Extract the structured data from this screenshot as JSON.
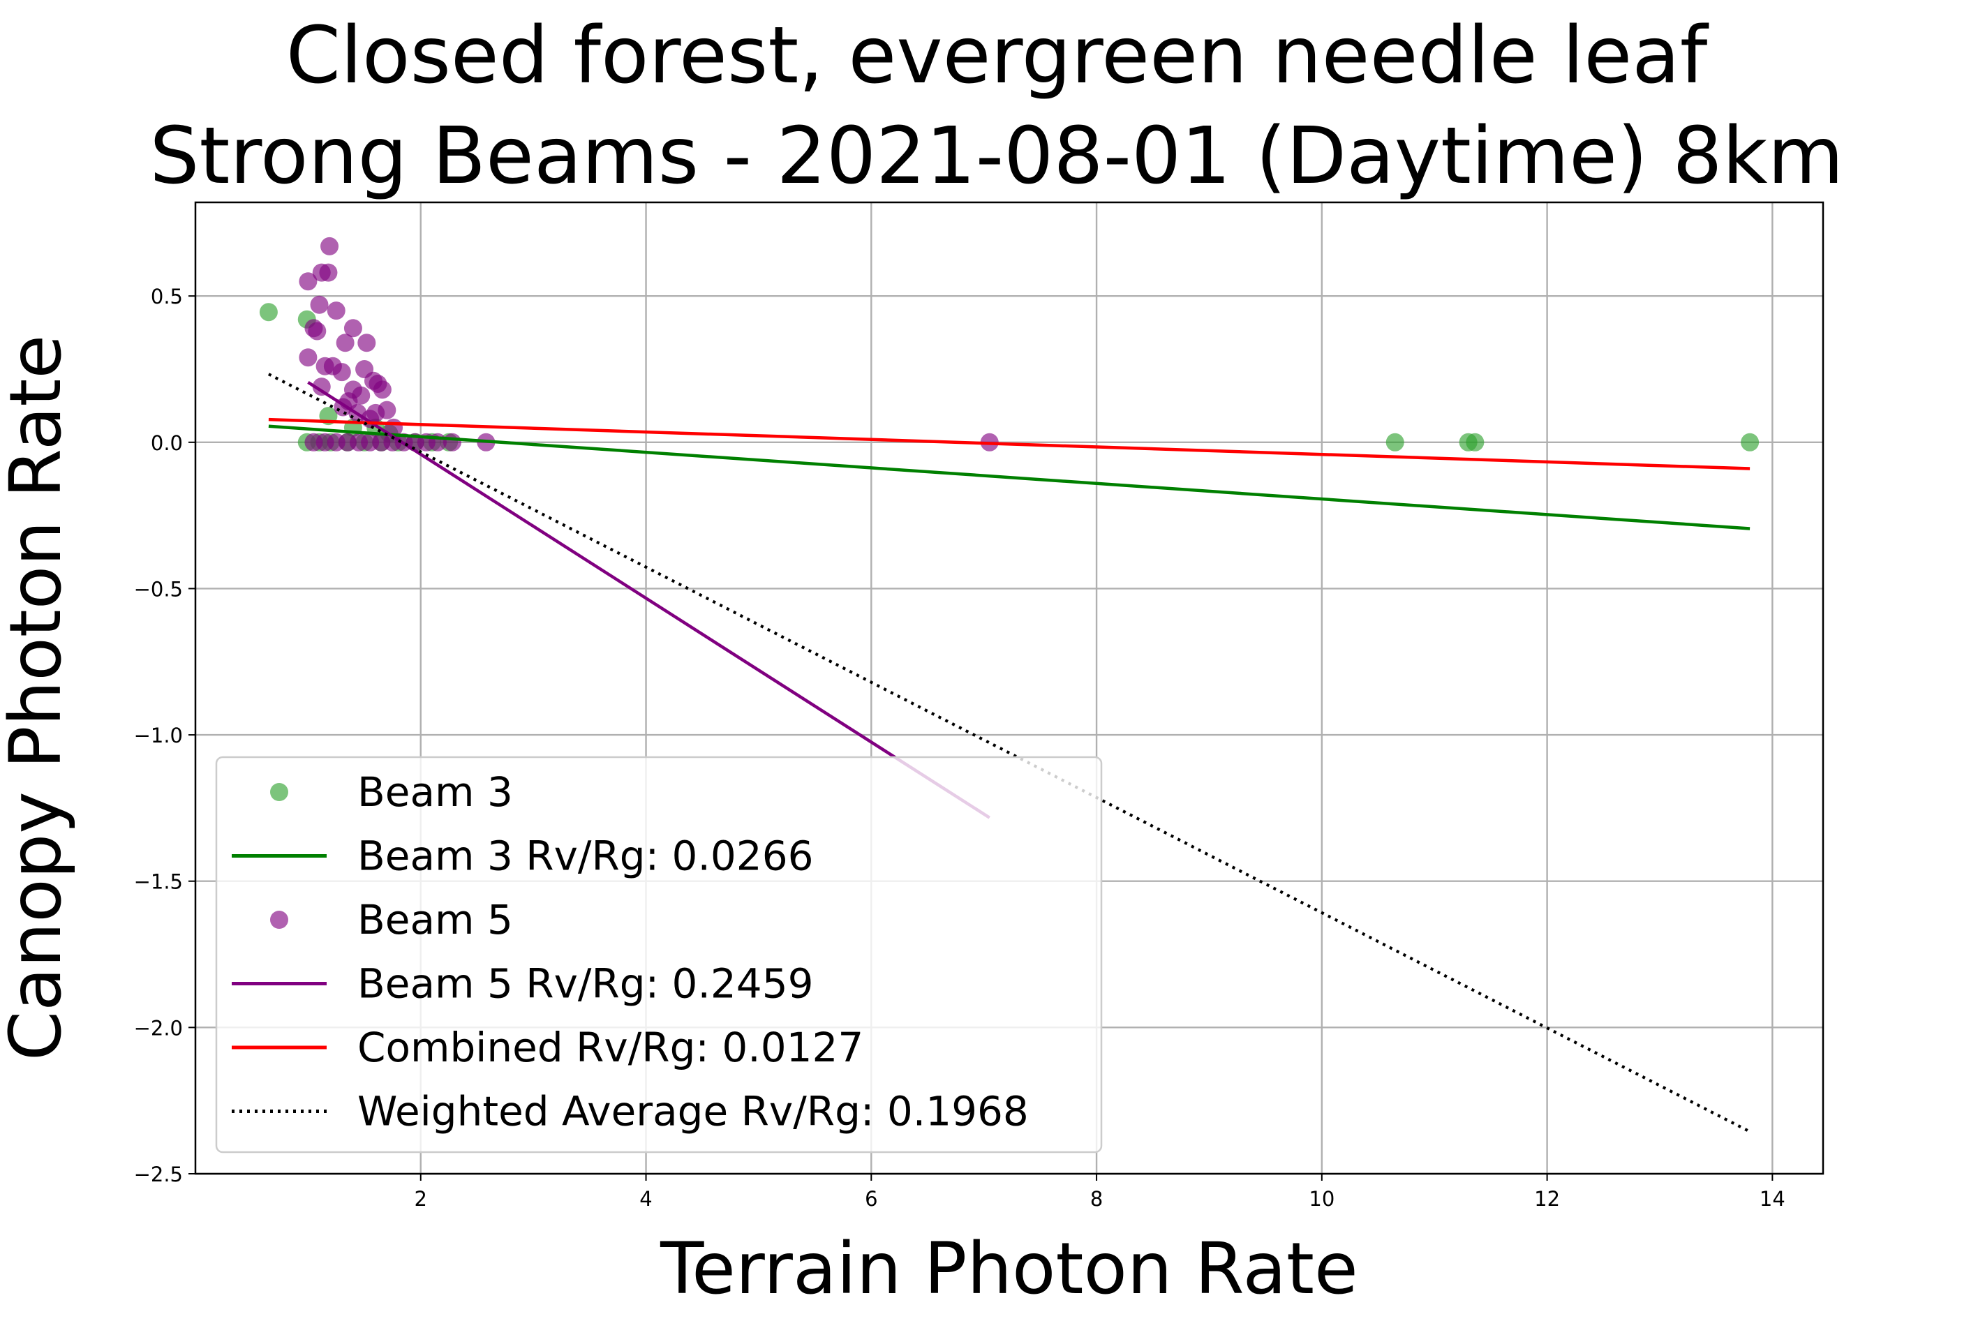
{
  "chart_data": {
    "type": "scatter",
    "title_lines": [
      "Closed forest, evergreen needle leaf",
      "Strong Beams - 2021-08-01 (Daytime) 8km"
    ],
    "xlabel": "Terrain Photon Rate",
    "ylabel": "Canopy Photon Rate",
    "xlim": [
      0.0,
      14.45
    ],
    "ylim": [
      -2.5,
      0.82
    ],
    "xticks": [
      2,
      4,
      6,
      8,
      10,
      12,
      14
    ],
    "xtick_labels": [
      "2",
      "4",
      "6",
      "8",
      "10",
      "12",
      "14"
    ],
    "yticks": [
      0.5,
      0.0,
      -0.5,
      -1.0,
      -1.5,
      -2.0,
      -2.5
    ],
    "ytick_labels": [
      "0.5",
      "0.0",
      "−0.5",
      "−1.0",
      "−1.5",
      "−2.0",
      "−2.5"
    ],
    "grid": true,
    "legend_position": "lower-left",
    "series": [
      {
        "name": "Beam 3",
        "kind": "scatter",
        "color": "#2ca02c",
        "points": [
          [
            0.65,
            0.445
          ],
          [
            0.99,
            0.42
          ],
          [
            1.18,
            0.09
          ],
          [
            1.4,
            0.05
          ],
          [
            1.6,
            0.05
          ],
          [
            1.72,
            0.03
          ],
          [
            0.99,
            0.0
          ],
          [
            1.1,
            0.0
          ],
          [
            1.2,
            0.0
          ],
          [
            1.35,
            0.0
          ],
          [
            1.5,
            0.0
          ],
          [
            1.65,
            0.0
          ],
          [
            1.8,
            0.0
          ],
          [
            1.95,
            0.0
          ],
          [
            2.1,
            0.0
          ],
          [
            2.25,
            0.0
          ],
          [
            10.65,
            0.0
          ],
          [
            11.3,
            0.0
          ],
          [
            11.36,
            0.0
          ],
          [
            13.8,
            0.0
          ]
        ]
      },
      {
        "name": "Beam 3 Rv/Rg: 0.0266",
        "kind": "line",
        "color": "#008000",
        "dash": "solid",
        "x": [
          0.65,
          13.8
        ],
        "y": [
          0.055,
          -0.295
        ]
      },
      {
        "name": "Beam 5",
        "kind": "scatter",
        "color": "#800080",
        "points": [
          [
            1.19,
            0.67
          ],
          [
            1.0,
            0.55
          ],
          [
            1.12,
            0.58
          ],
          [
            1.18,
            0.58
          ],
          [
            1.1,
            0.47
          ],
          [
            1.25,
            0.45
          ],
          [
            1.05,
            0.39
          ],
          [
            1.08,
            0.38
          ],
          [
            1.4,
            0.39
          ],
          [
            1.33,
            0.34
          ],
          [
            1.52,
            0.34
          ],
          [
            1.0,
            0.29
          ],
          [
            1.15,
            0.26
          ],
          [
            1.22,
            0.26
          ],
          [
            1.3,
            0.24
          ],
          [
            1.5,
            0.25
          ],
          [
            1.58,
            0.21
          ],
          [
            1.62,
            0.2
          ],
          [
            1.12,
            0.19
          ],
          [
            1.4,
            0.18
          ],
          [
            1.47,
            0.16
          ],
          [
            1.66,
            0.18
          ],
          [
            1.36,
            0.14
          ],
          [
            1.31,
            0.12
          ],
          [
            1.44,
            0.1
          ],
          [
            1.6,
            0.1
          ],
          [
            1.7,
            0.11
          ],
          [
            1.55,
            0.08
          ],
          [
            1.76,
            0.05
          ],
          [
            1.05,
            0.0
          ],
          [
            1.15,
            0.0
          ],
          [
            1.25,
            0.0
          ],
          [
            1.35,
            0.0
          ],
          [
            1.45,
            0.0
          ],
          [
            1.55,
            0.0
          ],
          [
            1.65,
            0.0
          ],
          [
            1.75,
            0.0
          ],
          [
            1.85,
            0.0
          ],
          [
            1.95,
            0.0
          ],
          [
            2.05,
            0.0
          ],
          [
            2.15,
            0.0
          ],
          [
            2.28,
            0.0
          ],
          [
            2.58,
            0.0
          ],
          [
            7.05,
            0.0
          ]
        ]
      },
      {
        "name": "Beam 5 Rv/Rg: 0.2459",
        "kind": "line",
        "color": "#800080",
        "dash": "solid",
        "x": [
          1.0,
          7.05
        ],
        "y": [
          0.205,
          -1.283
        ]
      },
      {
        "name": "Combined Rv/Rg: 0.0127",
        "kind": "line",
        "color": "#ff0000",
        "dash": "solid",
        "x": [
          0.65,
          13.8
        ],
        "y": [
          0.078,
          -0.09
        ]
      },
      {
        "name": "Weighted Average Rv/Rg: 0.1968",
        "kind": "line",
        "color": "#000000",
        "dash": "dotted",
        "x": [
          0.65,
          13.8
        ],
        "y": [
          0.233,
          -2.356
        ]
      }
    ],
    "legend": [
      {
        "label": "Beam 3",
        "kind": "marker",
        "color": "#2ca02c"
      },
      {
        "label": "Beam 3 Rv/Rg: 0.0266",
        "kind": "line",
        "color": "#008000",
        "dash": "solid"
      },
      {
        "label": "Beam 5",
        "kind": "marker",
        "color": "#800080"
      },
      {
        "label": "Beam 5 Rv/Rg: 0.2459",
        "kind": "line",
        "color": "#800080",
        "dash": "solid"
      },
      {
        "label": "Combined Rv/Rg: 0.0127",
        "kind": "line",
        "color": "#ff0000",
        "dash": "solid"
      },
      {
        "label": "Weighted Average Rv/Rg: 0.1968",
        "kind": "line",
        "color": "#000000",
        "dash": "dotted"
      }
    ]
  }
}
